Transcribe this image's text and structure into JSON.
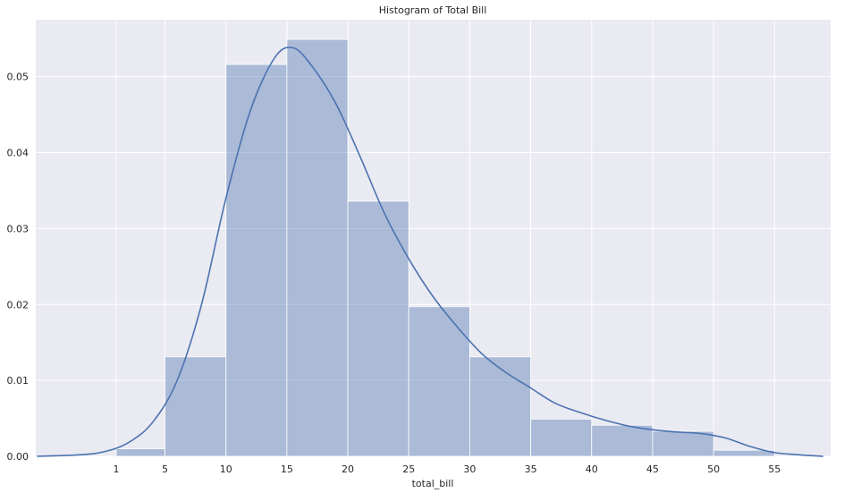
{
  "chart_data": {
    "type": "bar",
    "subtype": "histogram-with-kde",
    "title": "Histogram of Total Bill",
    "xlabel": "total_bill",
    "ylabel": "",
    "xlim": [
      -5.6,
      59.6
    ],
    "ylim": [
      0,
      0.0575
    ],
    "grid": true,
    "xticks": [
      1,
      5,
      10,
      15,
      20,
      25,
      30,
      35,
      40,
      45,
      50,
      55
    ],
    "yticks": [
      "0.00",
      "0.01",
      "0.02",
      "0.03",
      "0.04",
      "0.05"
    ],
    "bins": [
      {
        "x0": 1,
        "x1": 5,
        "value": 0.001
      },
      {
        "x0": 5,
        "x1": 10,
        "value": 0.0131
      },
      {
        "x0": 10,
        "x1": 15,
        "value": 0.0516
      },
      {
        "x0": 15,
        "x1": 20,
        "value": 0.0549
      },
      {
        "x0": 20,
        "x1": 25,
        "value": 0.0336
      },
      {
        "x0": 25,
        "x1": 30,
        "value": 0.0197
      },
      {
        "x0": 30,
        "x1": 35,
        "value": 0.0131
      },
      {
        "x0": 35,
        "x1": 40,
        "value": 0.0049
      },
      {
        "x0": 40,
        "x1": 45,
        "value": 0.0041
      },
      {
        "x0": 45,
        "x1": 50,
        "value": 0.0033
      },
      {
        "x0": 50,
        "x1": 55,
        "value": 0.0008
      }
    ],
    "kde": {
      "x": [
        -5.5,
        -2,
        0,
        2,
        4,
        6,
        8,
        10,
        12,
        14,
        15.5,
        17,
        19,
        21,
        23,
        25,
        27,
        29,
        31,
        33,
        35,
        37,
        39,
        41,
        43,
        45,
        47,
        49,
        51,
        53,
        55,
        57,
        59
      ],
      "y": [
        0.0,
        0.0002,
        0.0006,
        0.0018,
        0.0045,
        0.01,
        0.02,
        0.034,
        0.0455,
        0.0525,
        0.0538,
        0.0515,
        0.0465,
        0.0395,
        0.032,
        0.026,
        0.021,
        0.017,
        0.0135,
        0.011,
        0.009,
        0.007,
        0.0058,
        0.0048,
        0.004,
        0.0035,
        0.0032,
        0.003,
        0.0024,
        0.0013,
        0.0005,
        0.0002,
        0.0
      ]
    },
    "colors": {
      "bar": "#4c72b0",
      "line": "#4c72b0",
      "background": "#eaeaf2",
      "grid": "#ffffff"
    }
  }
}
